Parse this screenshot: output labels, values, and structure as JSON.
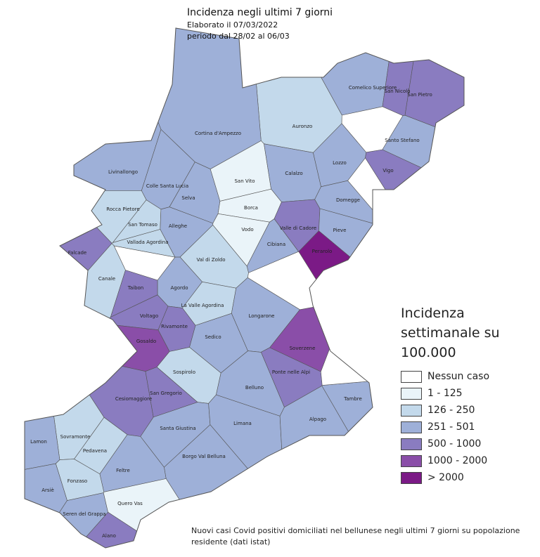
{
  "header": {
    "title": "Incidenza negli ultimi 7 giorni",
    "lines": [
      "Elaborato il 07/03/2022",
      "periodo dal 28/02 al 06/03"
    ]
  },
  "legend": {
    "title": "Incidenza settimanale su 100.000",
    "items": [
      {
        "label": "Nessun caso",
        "color": "#ffffff"
      },
      {
        "label": "1 - 125",
        "color": "#eaf4f9"
      },
      {
        "label": "126 - 250",
        "color": "#c3d9eb"
      },
      {
        "label": "251 - 501",
        "color": "#9eb0d8"
      },
      {
        "label": "500 - 1000",
        "color": "#8a7cc0"
      },
      {
        "label": "1000 - 2000",
        "color": "#8a4ea8"
      },
      {
        "label": "> 2000",
        "color": "#7b1a86"
      }
    ]
  },
  "municipalities": [
    {
      "label": "Comelico Superiore",
      "class": 3
    },
    {
      "label": "San Nicolò",
      "class": 4
    },
    {
      "label": "San Pietro",
      "class": 4
    },
    {
      "label": "Santo Stefano",
      "class": 3
    },
    {
      "label": "Auronzo",
      "class": 2
    },
    {
      "label": "Cortina d'Ampezzo",
      "class": 3
    },
    {
      "label": "Livinallongo",
      "class": 3
    },
    {
      "label": "Colle Santa Lucia",
      "class": 3
    },
    {
      "label": "Selva",
      "class": 3
    },
    {
      "label": "San Vito",
      "class": 1
    },
    {
      "label": "Calalzo",
      "class": 3
    },
    {
      "label": "Lozzo",
      "class": 3
    },
    {
      "label": "Vigo",
      "class": 4
    },
    {
      "label": "Domegge",
      "class": 3
    },
    {
      "label": "Borca",
      "class": 1
    },
    {
      "label": "Vodo",
      "class": 1
    },
    {
      "label": "Valle di Cadore",
      "class": 4
    },
    {
      "label": "Cibiana",
      "class": 3
    },
    {
      "label": "Pieve",
      "class": 3
    },
    {
      "label": "Perarolo",
      "class": 6
    },
    {
      "label": "Rocca Pietore",
      "class": 2
    },
    {
      "label": "San Tomaso",
      "class": 2
    },
    {
      "label": "Alleghe",
      "class": 3
    },
    {
      "label": "Vallada Agordina",
      "class": 2
    },
    {
      "label": "Falcade",
      "class": 4
    },
    {
      "label": "Canale",
      "class": 2
    },
    {
      "label": "Val di Zoldo",
      "class": 2
    },
    {
      "label": "Agordo",
      "class": 3
    },
    {
      "label": "Taibon",
      "class": 4
    },
    {
      "label": "La Valle Agordina",
      "class": 2
    },
    {
      "label": "Voltago",
      "class": 4
    },
    {
      "label": "Rivamonte",
      "class": 4
    },
    {
      "label": "Longarone",
      "class": 3
    },
    {
      "label": "Gosaldo",
      "class": 5
    },
    {
      "label": "Sedico",
      "class": 3
    },
    {
      "label": "Soverzene",
      "class": 5
    },
    {
      "label": "Ponte nelle Alpi",
      "class": 4
    },
    {
      "label": "Sospirolo",
      "class": 2
    },
    {
      "label": "Belluno",
      "class": 3
    },
    {
      "label": "Tambre",
      "class": 3
    },
    {
      "label": "Cesiomaggiore",
      "class": 4
    },
    {
      "label": "San Gregorio",
      "class": 4
    },
    {
      "label": "Santa Giustina",
      "class": 3
    },
    {
      "label": "Limana",
      "class": 3
    },
    {
      "label": "Alpago",
      "class": 3
    },
    {
      "label": "Sovramonte",
      "class": 2
    },
    {
      "label": "Lamon",
      "class": 3
    },
    {
      "label": "Pedavena",
      "class": 2
    },
    {
      "label": "Borgo Val Belluna",
      "class": 3
    },
    {
      "label": "Feltre",
      "class": 3
    },
    {
      "label": "Fonzaso",
      "class": 2
    },
    {
      "label": "Arsiè",
      "class": 3
    },
    {
      "label": "Seren del Grappa",
      "class": 3
    },
    {
      "label": "Quero Vas",
      "class": 1
    },
    {
      "label": "Alano",
      "class": 4
    }
  ],
  "footnote": "Nuovi casi Covid positivi domiciliati nel bellunese negli ultimi 7 giorni su popolazione residente (dati istat)"
}
